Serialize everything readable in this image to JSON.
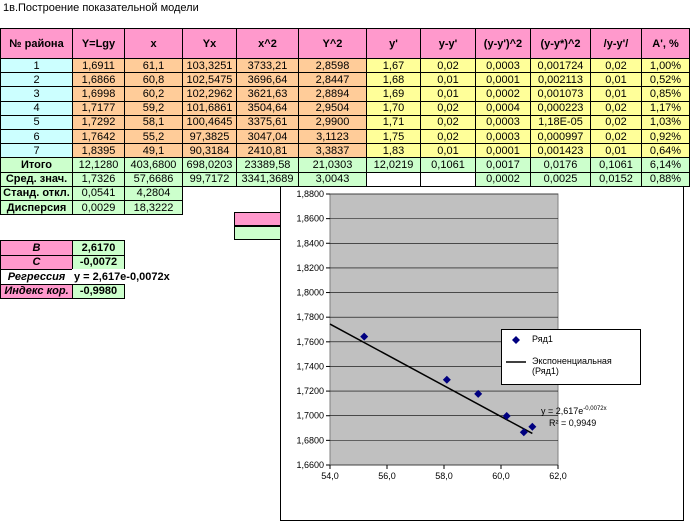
{
  "title": "1в.Построение показательной модели",
  "table": {
    "header": [
      "№ района",
      "Y=Lgy",
      "x",
      "Yx",
      "x^2",
      "Y^2",
      "y'",
      "y-y'",
      "(y-y')^2",
      "(y-y*)^2",
      "/y-y'/",
      "A', %"
    ],
    "rows": [
      [
        "1",
        "1,6911",
        "61,1",
        "103,3251",
        "3733,21",
        "2,8598",
        "1,67",
        "0,02",
        "0,0003",
        "0,001724",
        "0,02",
        "1,00%"
      ],
      [
        "2",
        "1,6866",
        "60,8",
        "102,5475",
        "3696,64",
        "2,8447",
        "1,68",
        "0,01",
        "0,0001",
        "0,002113",
        "0,01",
        "0,52%"
      ],
      [
        "3",
        "1,6998",
        "60,2",
        "102,2962",
        "3621,63",
        "2,8894",
        "1,69",
        "0,01",
        "0,0002",
        "0,001073",
        "0,01",
        "0,85%"
      ],
      [
        "4",
        "1,7177",
        "59,2",
        "101,6861",
        "3504,64",
        "2,9504",
        "1,70",
        "0,02",
        "0,0004",
        "0,000223",
        "0,02",
        "1,17%"
      ],
      [
        "5",
        "1,7292",
        "58,1",
        "100,4645",
        "3375,61",
        "2,9900",
        "1,71",
        "0,02",
        "0,0003",
        "1,18E-05",
        "0,02",
        "1,03%"
      ],
      [
        "6",
        "1,7642",
        "55,2",
        "97,3825",
        "3047,04",
        "3,1123",
        "1,75",
        "0,02",
        "0,0003",
        "0,000997",
        "0,02",
        "0,92%"
      ],
      [
        "7",
        "1,8395",
        "49,1",
        "90,3184",
        "2410,81",
        "3,3837",
        "1,83",
        "0,01",
        "0,0001",
        "0,001423",
        "0,01",
        "0,64%"
      ],
      [
        "Итого",
        "12,1280",
        "403,6800",
        "698,0203",
        "23389,58",
        "21,0303",
        "12,0219",
        "0,1061",
        "0,0017",
        "0,0176",
        "0,1061",
        "6,14%"
      ],
      [
        "Сред. знач.",
        "1,7326",
        "57,6686",
        "99,7172",
        "3341,3689",
        "3,0043",
        null,
        null,
        "0,0002",
        "0,0025",
        "0,0152",
        "0,88%"
      ],
      [
        "Станд. откл.",
        "0,0541",
        "4,2804"
      ],
      [
        "Дисперсия",
        "0,0029",
        "18,3222"
      ]
    ]
  },
  "params": [
    {
      "label": "В",
      "value": "2,6170"
    },
    {
      "label": "С",
      "value": "-0,0072"
    },
    {
      "label": "Регрессия",
      "value": "y = 2,617e-0,0072x"
    },
    {
      "label": "Индекс кор.",
      "value": "-0,9980"
    }
  ],
  "chart_data": {
    "type": "scatter",
    "series": [
      {
        "name": "Ряд1",
        "color": "#000080",
        "x": [
          55.2,
          58.1,
          59.2,
          60.2,
          60.8,
          61.1
        ],
        "values": [
          1.7642,
          1.7292,
          1.7177,
          1.6998,
          1.6866,
          1.6911
        ]
      },
      {
        "name": "Экспоненциальная (Ряд1)",
        "color": "#000000",
        "x": [
          54,
          61.1
        ],
        "values": [
          1.7744,
          1.6856
        ]
      }
    ],
    "xlim": [
      54,
      62
    ],
    "xticks": [
      {
        "value": 54,
        "label": "54,0"
      },
      {
        "value": 56,
        "label": "56,0"
      },
      {
        "value": 58,
        "label": "58,0"
      },
      {
        "value": 60,
        "label": "60,0"
      },
      {
        "value": 62,
        "label": "62,0"
      }
    ],
    "ylim": [
      1.66,
      1.88
    ],
    "yticks": [
      {
        "value": 1.66,
        "label": "1,6600"
      },
      {
        "value": 1.68,
        "label": "1,6800"
      },
      {
        "value": 1.7,
        "label": "1,7000"
      },
      {
        "value": 1.72,
        "label": "1,7200"
      },
      {
        "value": 1.74,
        "label": "1,7400"
      },
      {
        "value": 1.76,
        "label": "1,7600"
      },
      {
        "value": 1.78,
        "label": "1,7800"
      },
      {
        "value": 1.8,
        "label": "1,8000"
      },
      {
        "value": 1.82,
        "label": "1,8200"
      },
      {
        "value": 1.84,
        "label": "1,8400"
      },
      {
        "value": 1.86,
        "label": "1,8600"
      },
      {
        "value": 1.88,
        "label": "1,8800"
      }
    ],
    "grid": true,
    "equation": "y = 2,617e",
    "equation_exponent": "-0,0072x",
    "r_squared": "R² = 0,9949"
  }
}
